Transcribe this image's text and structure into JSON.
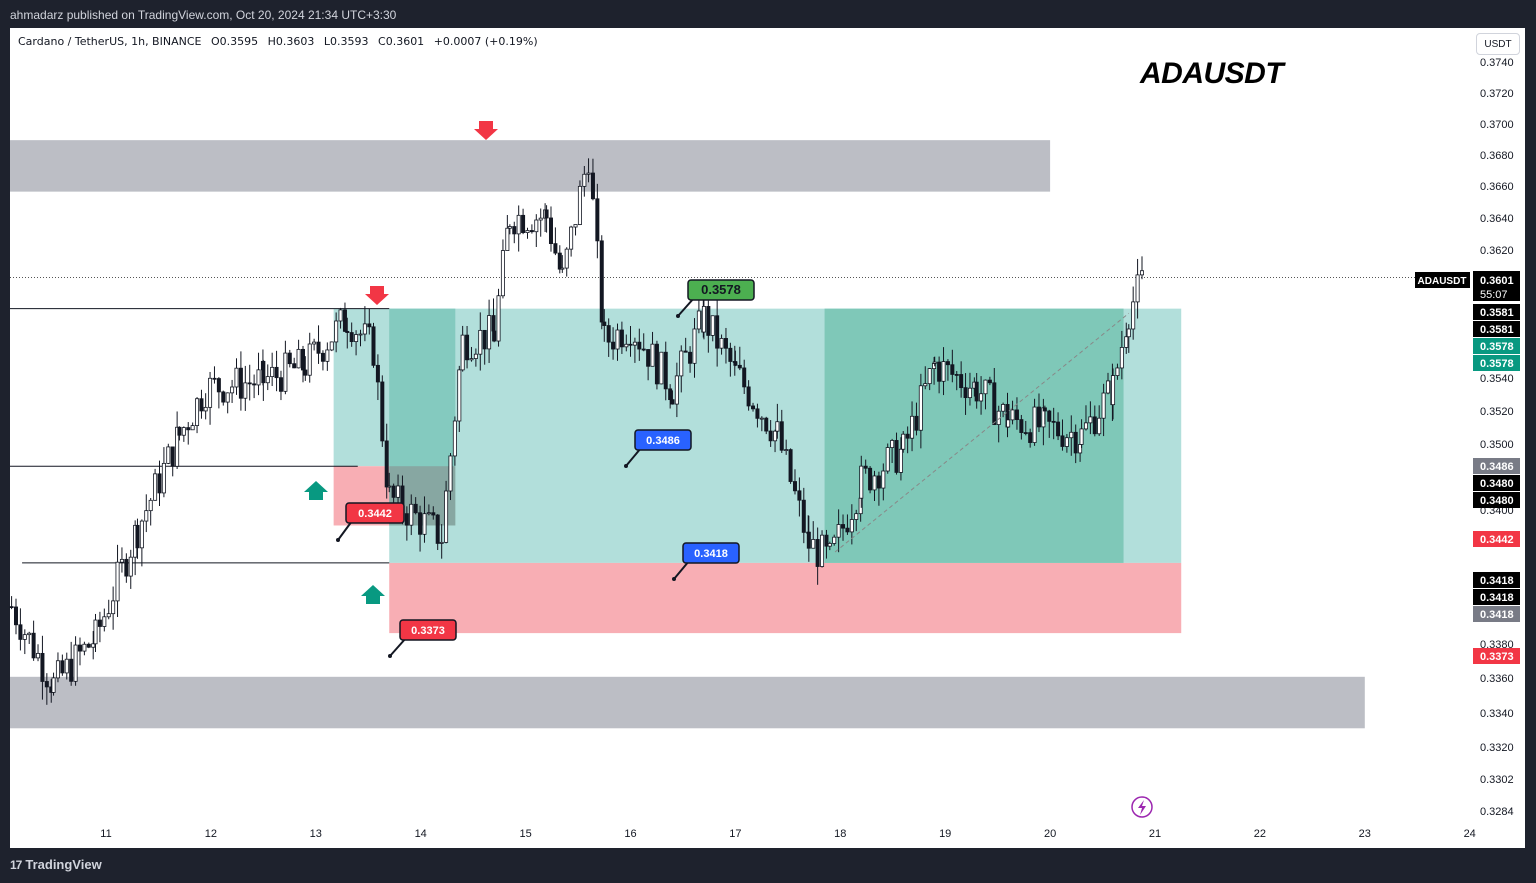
{
  "header": {
    "publisher": "ahmadarz published on TradingView.com, Oct 20, 2024 21:34 UTC+3:30"
  },
  "symbol_line": {
    "name": "Cardano / TetherUS, 1h, BINANCE",
    "open": "O0.3595",
    "high": "H0.3603",
    "low": "L0.3593",
    "close": "C0.3601",
    "change": "+0.0007 (+0.19%)"
  },
  "title_overlay": "ADAUSDT",
  "currency_button": "USDT",
  "footer": {
    "brand": "TradingView",
    "brand_mark": "17"
  },
  "colors": {
    "up": "#089981",
    "down": "#f23645",
    "supply_zone": "#bcbec5",
    "profit_zone": "#b2dfdb",
    "profit_dark": "#7fc8b8",
    "loss_zone": "#f8aeb4",
    "arrow_down": "#f23645",
    "arrow_up": "#089981",
    "label_blue": "#2962ff",
    "label_green": "#4caf50",
    "lightning": "#9c27b0"
  },
  "chart_data": {
    "type": "candlestick",
    "symbol": "ADAUSDT",
    "timeframe": "1h",
    "y_axis": {
      "ticks": [
        "0.3740",
        "0.3720",
        "0.3700",
        "0.3680",
        "0.3660",
        "0.3640",
        "0.3620",
        "0.3540",
        "0.3520",
        "0.3500",
        "0.3400",
        "0.3380",
        "0.3360",
        "0.3340",
        "0.3320",
        "0.3302",
        "0.3284"
      ],
      "range": [
        0.3275,
        0.3745
      ]
    },
    "x_axis": {
      "ticks": [
        "11",
        "12",
        "13",
        "14",
        "15",
        "16",
        "17",
        "18",
        "19",
        "20",
        "21",
        "22",
        "23",
        "24"
      ]
    },
    "last_price": {
      "label": "ADAUSDT",
      "price": "0.3601",
      "countdown": "55:07",
      "value": 0.3601
    },
    "price_labels": [
      {
        "text": "0.3581",
        "value": 0.3581,
        "style": "black"
      },
      {
        "text": "0.3581",
        "value": 0.3581,
        "style": "black"
      },
      {
        "text": "0.3578",
        "value": 0.3578,
        "style": "green"
      },
      {
        "text": "0.3578",
        "value": 0.3578,
        "style": "green"
      },
      {
        "text": "0.3486",
        "value": 0.3486,
        "style": "gray"
      },
      {
        "text": "0.3480",
        "value": 0.348,
        "style": "black"
      },
      {
        "text": "0.3480",
        "value": 0.348,
        "style": "black"
      },
      {
        "text": "0.3442",
        "value": 0.3442,
        "style": "red"
      },
      {
        "text": "0.3418",
        "value": 0.3418,
        "style": "black"
      },
      {
        "text": "0.3418",
        "value": 0.3418,
        "style": "black"
      },
      {
        "text": "0.3418",
        "value": 0.3418,
        "style": "gray"
      },
      {
        "text": "0.3373",
        "value": 0.3373,
        "style": "red"
      }
    ],
    "annotations": [
      {
        "text": "0.3578",
        "style": "green",
        "value": 0.3578
      },
      {
        "text": "0.3486",
        "style": "blue",
        "value": 0.3486
      },
      {
        "text": "0.3442",
        "style": "red",
        "value": 0.3442
      },
      {
        "text": "0.3418",
        "style": "blue",
        "value": 0.3418
      },
      {
        "text": "0.3373",
        "style": "red",
        "value": 0.3373
      }
    ],
    "zones": [
      {
        "kind": "supply",
        "from": 0.3656,
        "to": 0.3689
      },
      {
        "kind": "demand",
        "from": 0.3312,
        "to": 0.3345
      },
      {
        "kind": "long_position_1",
        "entry": 0.348,
        "target": 0.3581,
        "stop": 0.3442
      },
      {
        "kind": "long_position_2",
        "entry": 0.3418,
        "target": 0.3581,
        "stop": 0.3373
      }
    ],
    "horizontal_lines": [
      0.3581,
      0.348,
      0.3418
    ],
    "series": [
      {
        "name": "ADAUSDT",
        "ohlc_segments": [
          {
            "day": 10.1,
            "price": 0.339
          },
          {
            "day": 10.5,
            "price": 0.334
          },
          {
            "day": 10.9,
            "price": 0.337
          },
          {
            "day": 11.3,
            "price": 0.344
          },
          {
            "day": 11.7,
            "price": 0.35
          },
          {
            "day": 11.95,
            "price": 0.353
          },
          {
            "day": 12.5,
            "price": 0.3535
          },
          {
            "day": 12.9,
            "price": 0.3545
          },
          {
            "day": 13.3,
            "price": 0.3575
          },
          {
            "day": 13.55,
            "price": 0.3555
          },
          {
            "day": 13.7,
            "price": 0.346
          },
          {
            "day": 14.2,
            "price": 0.3435
          },
          {
            "day": 14.4,
            "price": 0.356
          },
          {
            "day": 14.7,
            "price": 0.3565
          },
          {
            "day": 14.85,
            "price": 0.364
          },
          {
            "day": 15.2,
            "price": 0.364
          },
          {
            "day": 15.35,
            "price": 0.36
          },
          {
            "day": 15.6,
            "price": 0.368
          },
          {
            "day": 15.75,
            "price": 0.356
          },
          {
            "day": 16.0,
            "price": 0.357
          },
          {
            "day": 16.4,
            "price": 0.353
          },
          {
            "day": 16.7,
            "price": 0.3575
          },
          {
            "day": 17.0,
            "price": 0.354
          },
          {
            "day": 17.4,
            "price": 0.35
          },
          {
            "day": 17.7,
            "price": 0.343
          },
          {
            "day": 17.9,
            "price": 0.342
          },
          {
            "day": 18.2,
            "price": 0.347
          },
          {
            "day": 18.6,
            "price": 0.349
          },
          {
            "day": 18.9,
            "price": 0.3545
          },
          {
            "day": 19.3,
            "price": 0.353
          },
          {
            "day": 19.6,
            "price": 0.351
          },
          {
            "day": 19.95,
            "price": 0.3505
          },
          {
            "day": 20.3,
            "price": 0.35
          },
          {
            "day": 20.6,
            "price": 0.353
          },
          {
            "day": 20.75,
            "price": 0.358
          },
          {
            "day": 20.9,
            "price": 0.3601
          }
        ]
      }
    ]
  }
}
